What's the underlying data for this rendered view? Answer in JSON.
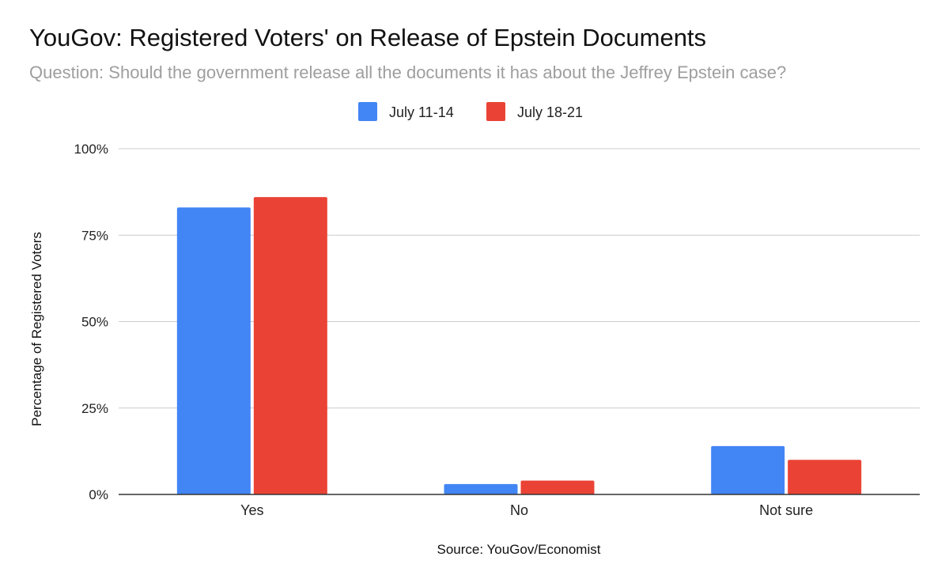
{
  "chart_data": {
    "type": "bar",
    "title": "YouGov: Registered Voters' on Release of Epstein Documents",
    "subtitle": "Question: Should the government release all the documents it has about the Jeffrey Epstein case?",
    "categories": [
      "Yes",
      "No",
      "Not sure"
    ],
    "series": [
      {
        "name": "July 11-14",
        "values": [
          83,
          3,
          14
        ],
        "color": "#4285F4"
      },
      {
        "name": "July 18-21",
        "values": [
          86,
          4,
          10
        ],
        "color": "#EA4335"
      }
    ],
    "ylabel": "Percentage of Registered Voters",
    "xlabel": "Source: YouGov/Economist",
    "ylim": [
      0,
      100
    ],
    "yticks": [
      0,
      25,
      50,
      75,
      100
    ],
    "ytick_labels": [
      "0%",
      "25%",
      "50%",
      "75%",
      "100%"
    ],
    "legend_position": "top",
    "grid": true
  }
}
